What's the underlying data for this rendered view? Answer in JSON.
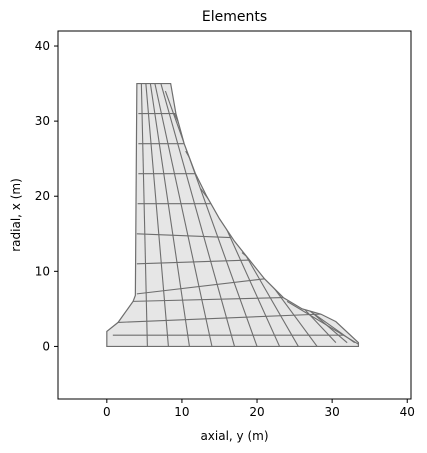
{
  "chart_data": {
    "type": "mesh",
    "title": "Elements",
    "xlabel": "axial, y (m)",
    "ylabel": "radial, x (m)",
    "xlim": [
      -6.5,
      40.5
    ],
    "ylim": [
      -7,
      42
    ],
    "xticks": [
      0,
      10,
      20,
      30,
      40
    ],
    "yticks": [
      0,
      10,
      20,
      30,
      40
    ],
    "grid": false,
    "colors": {
      "element_fill": "#e6e6e6",
      "element_edge": "#6e6e6e",
      "axes": "#000000"
    },
    "outline": [
      [
        4,
        35
      ],
      [
        8.5,
        35
      ],
      [
        9.2,
        31
      ],
      [
        10.3,
        27
      ],
      [
        11.8,
        23
      ],
      [
        13.3,
        20
      ],
      [
        15,
        17
      ],
      [
        17,
        14
      ],
      [
        19,
        11.5
      ],
      [
        21,
        9
      ],
      [
        23.5,
        6.5
      ],
      [
        26,
        5
      ],
      [
        28.5,
        4.3
      ],
      [
        30.5,
        3.3
      ],
      [
        33.5,
        0.5
      ],
      [
        33.5,
        0
      ],
      [
        0,
        0
      ],
      [
        0,
        2
      ],
      [
        1.5,
        3.2
      ],
      [
        3.5,
        6
      ],
      [
        3.8,
        6.8
      ],
      [
        4,
        35
      ]
    ],
    "mesh_edges": [
      [
        [
          4.2,
          31
        ],
        [
          9.2,
          31
        ]
      ],
      [
        [
          4.2,
          27
        ],
        [
          10.3,
          27
        ]
      ],
      [
        [
          4.2,
          23
        ],
        [
          11.8,
          23
        ]
      ],
      [
        [
          4.1,
          19
        ],
        [
          13.8,
          19
        ]
      ],
      [
        [
          4,
          15
        ],
        [
          16.5,
          14.5
        ]
      ],
      [
        [
          4,
          11
        ],
        [
          19,
          11.5
        ]
      ],
      [
        [
          4,
          7
        ],
        [
          21,
          9
        ]
      ],
      [
        [
          3.5,
          6
        ],
        [
          23.5,
          6.5
        ]
      ],
      [
        [
          1.5,
          3.2
        ],
        [
          28.5,
          4.3
        ]
      ],
      [
        [
          0.8,
          1.5
        ],
        [
          31.5,
          1.5
        ]
      ],
      [
        [
          4.6,
          35
        ],
        [
          5.4,
          0
        ]
      ],
      [
        [
          5.2,
          35
        ],
        [
          8.2,
          0
        ]
      ],
      [
        [
          5.8,
          35
        ],
        [
          11,
          0
        ]
      ],
      [
        [
          6.4,
          35
        ],
        [
          14,
          0
        ]
      ],
      [
        [
          7.2,
          35
        ],
        [
          17,
          0
        ]
      ],
      [
        [
          7.8,
          34
        ],
        [
          20,
          0
        ]
      ],
      [
        [
          9,
          31
        ],
        [
          23,
          0
        ]
      ],
      [
        [
          10.5,
          26
        ],
        [
          25.5,
          0
        ]
      ],
      [
        [
          12.5,
          21
        ],
        [
          28,
          0
        ]
      ],
      [
        [
          15,
          17
        ],
        [
          30.5,
          0.5
        ]
      ],
      [
        [
          18,
          12.5
        ],
        [
          32,
          0.5
        ]
      ],
      [
        [
          21,
          9
        ],
        [
          33,
          0.5
        ]
      ],
      [
        [
          24,
          6
        ],
        [
          33.5,
          0.3
        ]
      ]
    ]
  }
}
